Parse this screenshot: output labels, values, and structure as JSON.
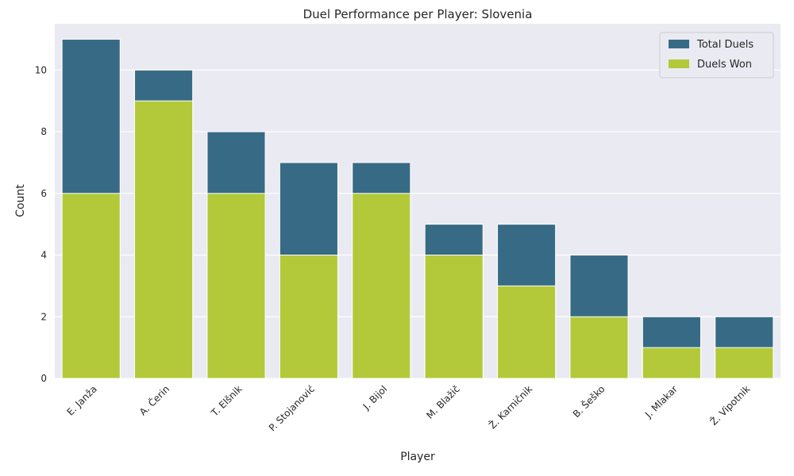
{
  "chart_data": {
    "type": "bar",
    "title": "Duel Performance per Player: Slovenia",
    "xlabel": "Player",
    "ylabel": "Count",
    "ylim": [
      0,
      11.5
    ],
    "yticks": [
      0,
      2,
      4,
      6,
      8,
      10
    ],
    "grid": true,
    "legend_position": "top-right",
    "categories": [
      "E. Janža",
      "A. Čerin",
      "T. Elšnik",
      "P. Stojanović",
      "J. Bijol",
      "M. Blažič",
      "Ž. Karničnik",
      "B. Šeško",
      "J. Mlakar",
      "Ž. Vipotnik"
    ],
    "series": [
      {
        "name": "Total Duels",
        "color": "#376b85",
        "values": [
          11,
          10,
          8,
          7,
          7,
          5,
          5,
          4,
          2,
          2
        ]
      },
      {
        "name": "Duels Won",
        "color": "#b3c93a",
        "values": [
          6,
          9,
          6,
          4,
          6,
          4,
          3,
          2,
          1,
          1
        ]
      }
    ],
    "colors": {
      "plot_background": "#eaeaf2",
      "grid": "#ffffff",
      "text": "#262626"
    }
  }
}
